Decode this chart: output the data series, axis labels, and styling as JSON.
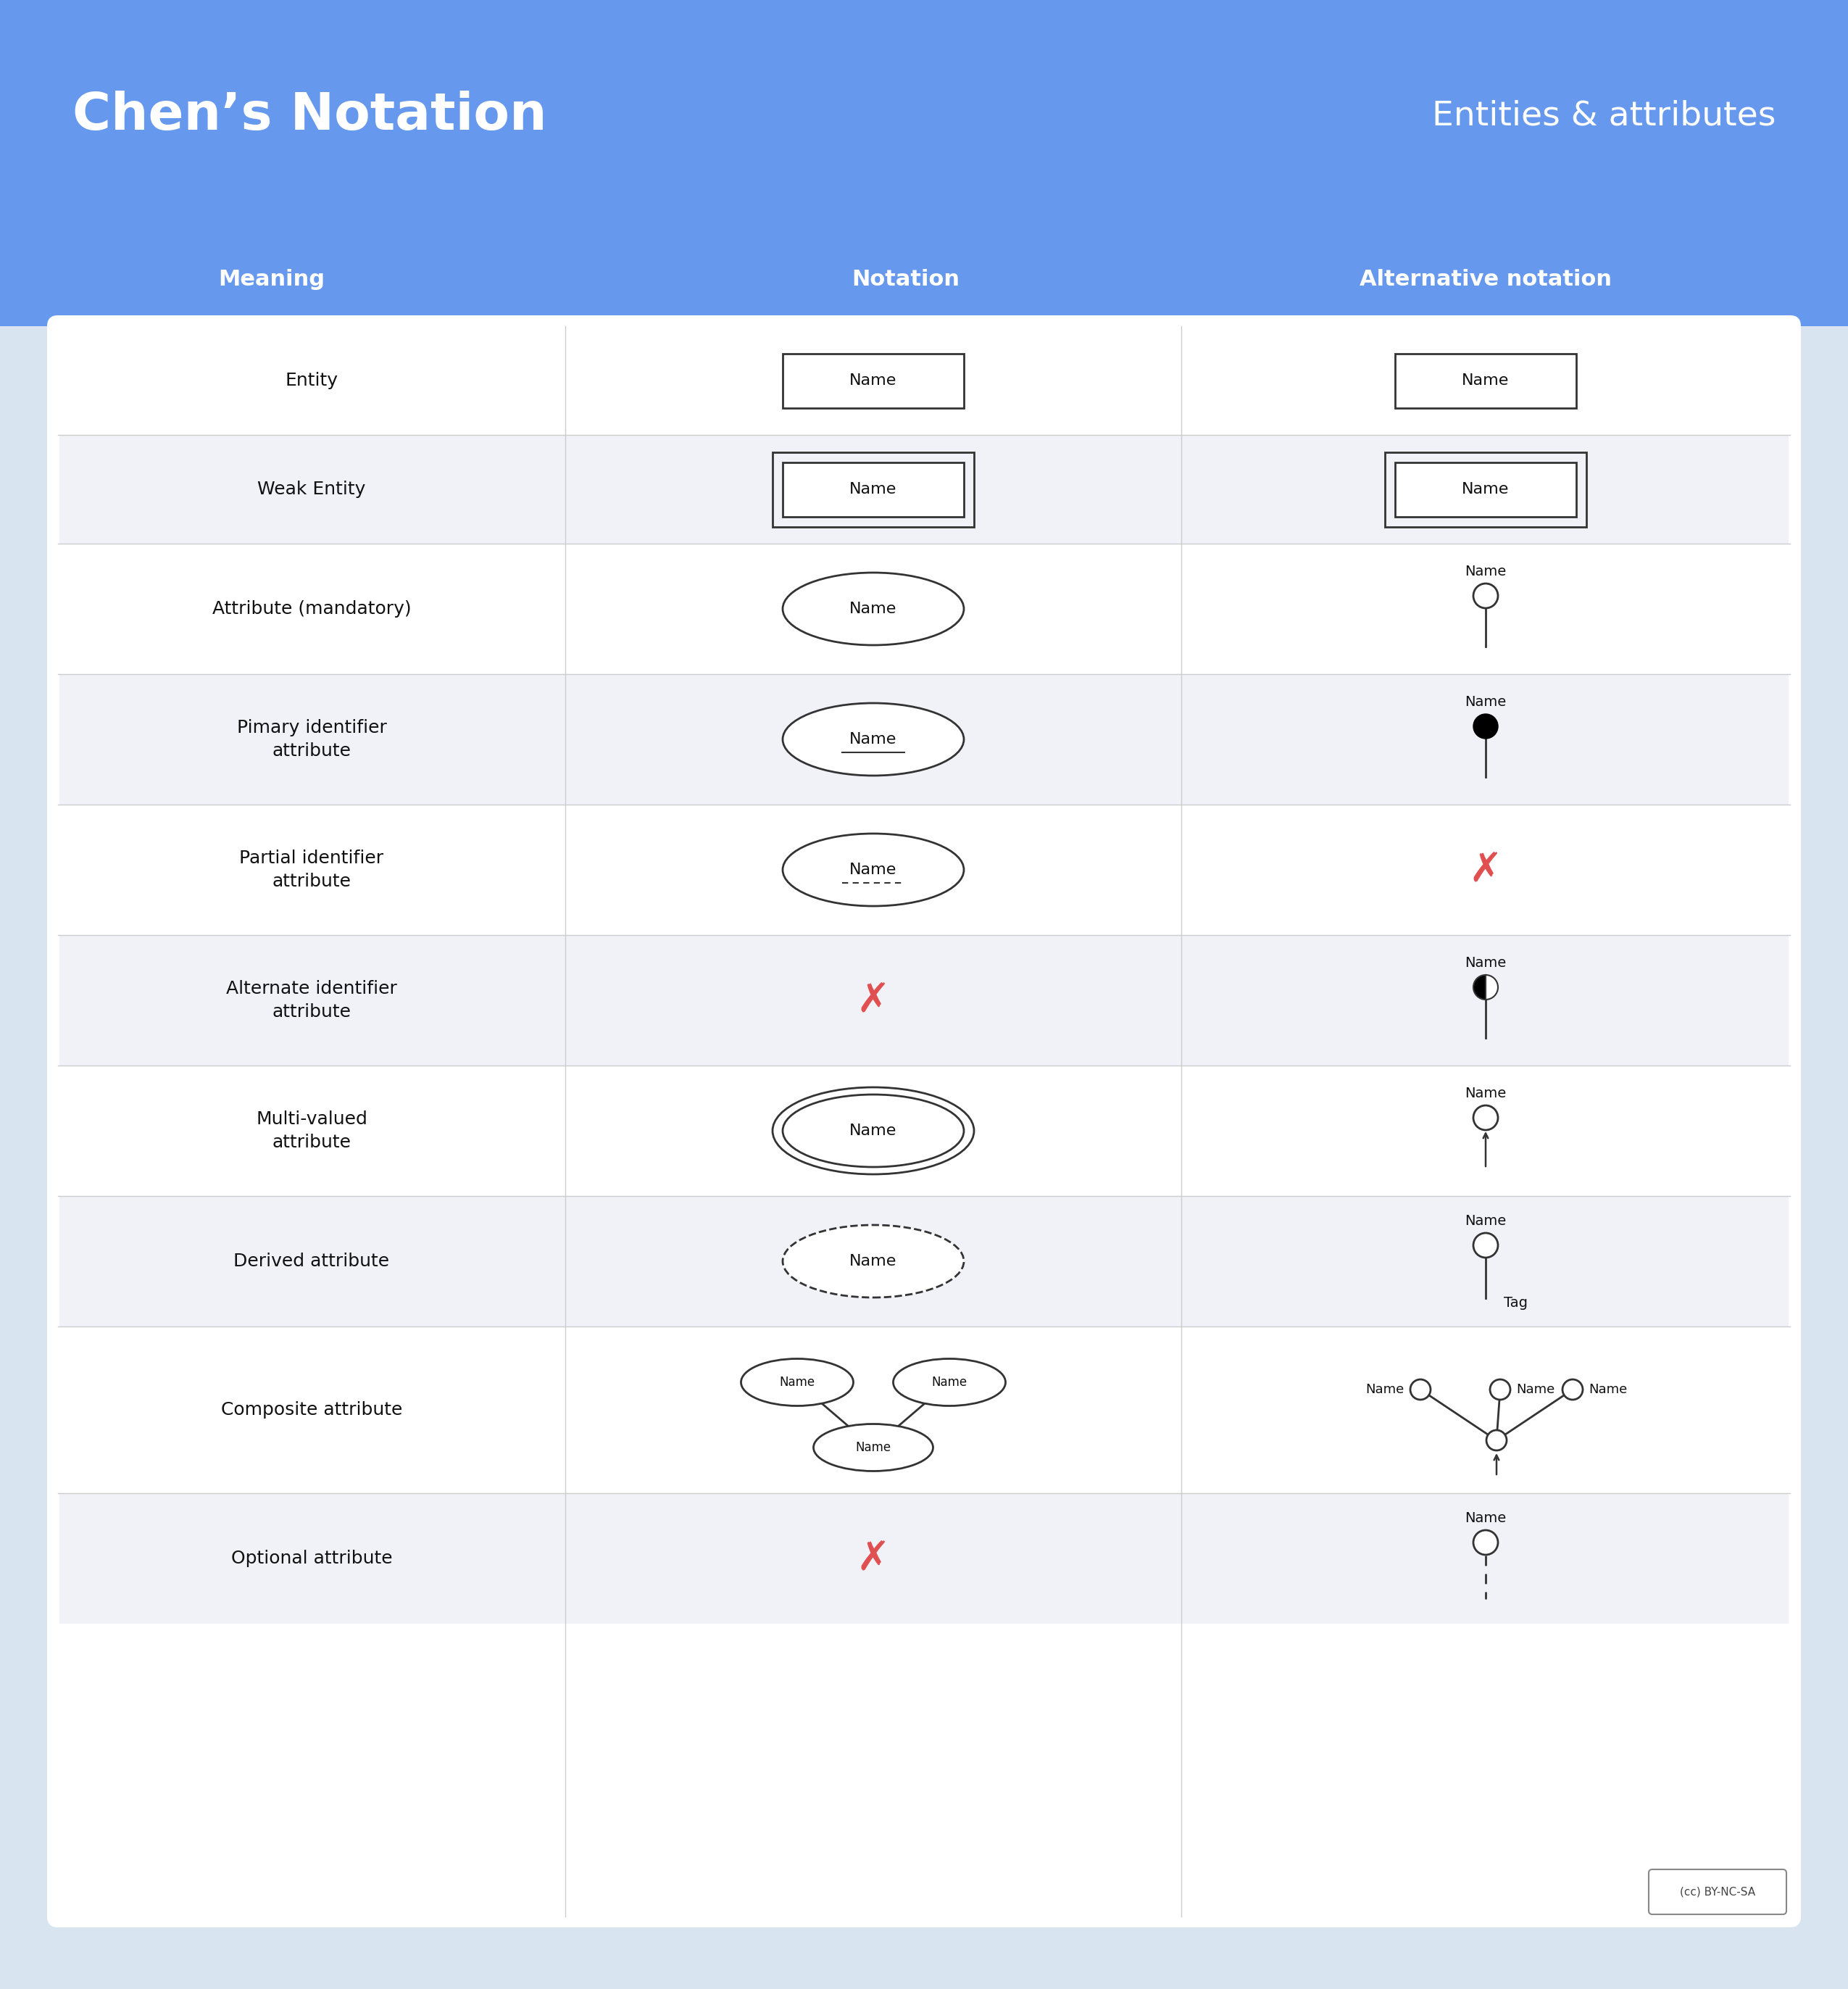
{
  "title": "Chen’s Notation",
  "subtitle": "Entities & attributes",
  "header_bg": "#6699ee",
  "header_text_color": "#ffffff",
  "col_headers": [
    "Meaning",
    "Notation",
    "Alternative notation"
  ],
  "col_header_fontsize": 22,
  "body_bg": "#ffffff",
  "border_color": "#cccccc",
  "rows": [
    {
      "meaning": "Entity",
      "row_bg": "#ffffff"
    },
    {
      "meaning": "Weak Entity",
      "row_bg": "#f0f2f8"
    },
    {
      "meaning": "Attribute (mandatory)",
      "row_bg": "#ffffff"
    },
    {
      "meaning": "Pimary identifier\nattribute",
      "row_bg": "#f0f2f8"
    },
    {
      "meaning": "Partial identifier\nattribute",
      "row_bg": "#ffffff"
    },
    {
      "meaning": "Alternate identifier\nattribute",
      "row_bg": "#f0f2f8"
    },
    {
      "meaning": "Multi-valued\nattribute",
      "row_bg": "#ffffff"
    },
    {
      "meaning": "Derived attribute",
      "row_bg": "#f0f2f8"
    },
    {
      "meaning": "Composite attribute",
      "row_bg": "#ffffff"
    },
    {
      "meaning": "Optional attribute",
      "row_bg": "#f0f2f8"
    }
  ],
  "text_color": "#111111",
  "red_color": "#e05050",
  "line_color": "#333333",
  "meaning_fontsize": 18,
  "notation_fontsize": 16,
  "bg_color": "#d8e4f0"
}
